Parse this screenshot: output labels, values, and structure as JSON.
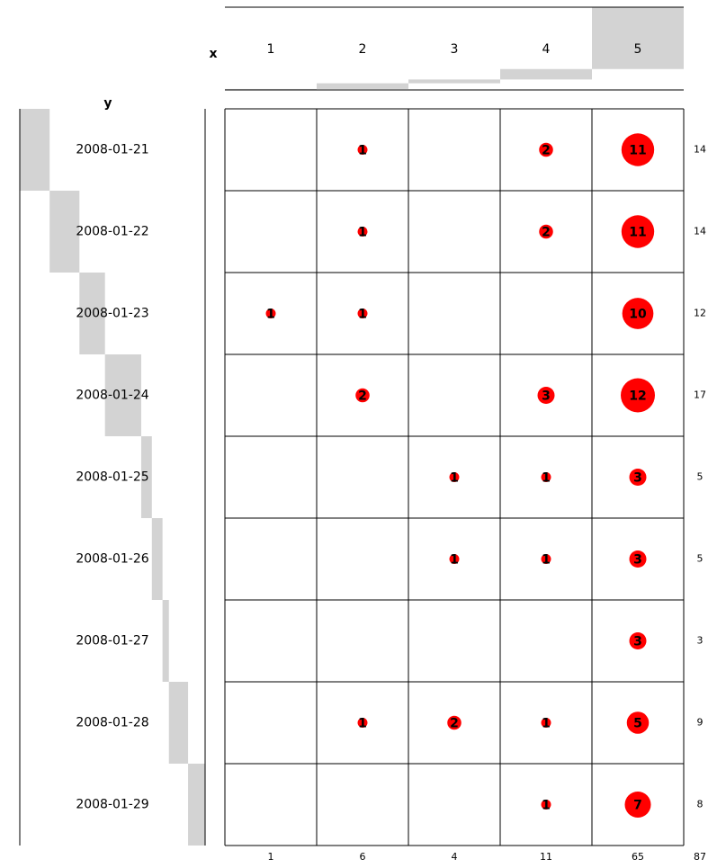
{
  "chart_data": {
    "type": "balloon",
    "xlabel": "x",
    "ylabel": "y",
    "columns": [
      1,
      2,
      3,
      4,
      5
    ],
    "rows": [
      "2008-01-21",
      "2008-01-22",
      "2008-01-23",
      "2008-01-24",
      "2008-01-25",
      "2008-01-26",
      "2008-01-27",
      "2008-01-28",
      "2008-01-29"
    ],
    "values": [
      [
        null,
        1,
        null,
        2,
        11
      ],
      [
        null,
        1,
        null,
        2,
        11
      ],
      [
        1,
        1,
        null,
        null,
        10
      ],
      [
        null,
        2,
        null,
        3,
        12
      ],
      [
        null,
        null,
        1,
        1,
        3
      ],
      [
        null,
        null,
        1,
        1,
        3
      ],
      [
        null,
        null,
        null,
        null,
        3
      ],
      [
        null,
        1,
        2,
        1,
        5
      ],
      [
        null,
        null,
        null,
        1,
        7
      ]
    ],
    "row_totals": [
      14,
      14,
      12,
      17,
      5,
      5,
      3,
      9,
      8
    ],
    "column_totals": [
      1,
      6,
      4,
      11,
      65
    ],
    "grand_total": 87,
    "color": "#ff0000",
    "bar_color": "#d3d3d3"
  }
}
